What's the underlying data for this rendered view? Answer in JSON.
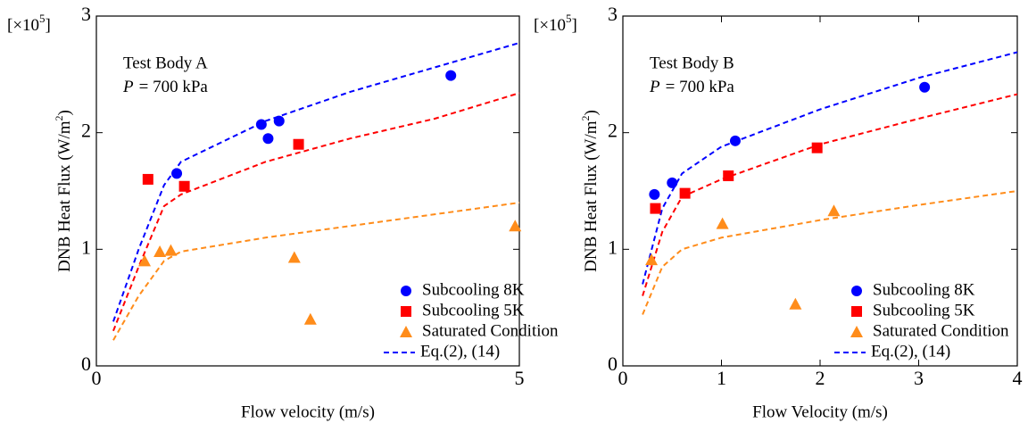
{
  "chart_data": [
    {
      "type": "scatter",
      "annotation": "Test Body A",
      "pressure": {
        "symbol": "P",
        "text": "= 700 kPa"
      },
      "scale_label": [
        "[×10",
        "5",
        "]"
      ],
      "xlabel": "Flow velocity (m/s)",
      "ylabel": [
        "DNB Heat Flux (W/m",
        "2",
        ")"
      ],
      "xlim": [
        0,
        5
      ],
      "ylim": [
        0,
        3
      ],
      "xticks": [
        0,
        5
      ],
      "yticks": [
        0,
        1,
        2,
        3
      ],
      "legend": "lower right",
      "series": [
        {
          "name": "Subcooling 8K",
          "color": "#0000ff",
          "marker": "circle",
          "x": [
            0.95,
            1.95,
            2.03,
            2.16,
            4.19
          ],
          "values": [
            1.65,
            2.07,
            1.95,
            2.1,
            2.49
          ]
        },
        {
          "name": "Subcooling 5K",
          "color": "#ff0000",
          "marker": "square",
          "x": [
            0.61,
            1.04,
            2.39
          ],
          "values": [
            1.6,
            1.54,
            1.9
          ]
        },
        {
          "name": "Saturated Condition",
          "color": "#ff8c1a",
          "marker": "triangle",
          "x": [
            0.57,
            0.75,
            0.88,
            2.34,
            2.53,
            4.95
          ],
          "values": [
            0.9,
            0.98,
            0.99,
            0.93,
            0.4,
            1.2
          ]
        }
      ],
      "fits": [
        {
          "name": "Eq.(2), (14)",
          "color": "#0000ff",
          "x": [
            0.2,
            0.5,
            0.8,
            1.0,
            2,
            3,
            4,
            5
          ],
          "values": [
            0.38,
            1.0,
            1.55,
            1.75,
            2.1,
            2.35,
            2.56,
            2.77
          ]
        },
        {
          "color": "#ff0000",
          "x": [
            0.2,
            0.5,
            0.8,
            1.0,
            2,
            3,
            4,
            5
          ],
          "values": [
            0.3,
            0.85,
            1.37,
            1.47,
            1.75,
            1.95,
            2.12,
            2.34
          ]
        },
        {
          "color": "#ff8c1a",
          "x": [
            0.2,
            0.5,
            0.8,
            1.0,
            2,
            3,
            4,
            5
          ],
          "values": [
            0.22,
            0.6,
            0.9,
            0.98,
            1.1,
            1.2,
            1.3,
            1.4
          ]
        }
      ]
    },
    {
      "type": "scatter",
      "annotation": "Test Body B",
      "pressure": {
        "symbol": "P",
        "text": "= 700 kPa"
      },
      "scale_label": [
        "[×10",
        "5",
        "]"
      ],
      "xlabel": "Flow Velocity (m/s)",
      "ylabel": [
        "DNB Heat Flux (W/m",
        "2",
        ")"
      ],
      "xlim": [
        0,
        4
      ],
      "ylim": [
        0,
        3
      ],
      "xticks": [
        0,
        1,
        2,
        3,
        4
      ],
      "yticks": [
        0,
        1,
        2,
        3
      ],
      "legend": "lower right",
      "series": [
        {
          "name": "Subcooling 8K",
          "color": "#0000ff",
          "marker": "circle",
          "x": [
            0.32,
            0.5,
            1.14,
            3.06
          ],
          "values": [
            1.47,
            1.57,
            1.93,
            2.39
          ]
        },
        {
          "name": "Subcooling 5K",
          "color": "#ff0000",
          "marker": "square",
          "x": [
            0.33,
            0.63,
            1.07,
            1.97
          ],
          "values": [
            1.35,
            1.48,
            1.63,
            1.87
          ]
        },
        {
          "name": "Saturated Condition",
          "color": "#ff8c1a",
          "marker": "triangle",
          "x": [
            0.29,
            1.01,
            1.75,
            2.14
          ],
          "values": [
            0.91,
            1.22,
            0.53,
            1.33
          ]
        }
      ],
      "fits": [
        {
          "name": "Eq.(2), (14)",
          "color": "#0000ff",
          "x": [
            0.2,
            0.4,
            0.6,
            1,
            2,
            3,
            4
          ],
          "values": [
            0.7,
            1.35,
            1.65,
            1.88,
            2.2,
            2.47,
            2.69
          ]
        },
        {
          "color": "#ff0000",
          "x": [
            0.2,
            0.4,
            0.6,
            1,
            2,
            3,
            4
          ],
          "values": [
            0.6,
            1.15,
            1.45,
            1.6,
            1.9,
            2.12,
            2.33
          ]
        },
        {
          "color": "#ff8c1a",
          "x": [
            0.2,
            0.4,
            0.6,
            1,
            2,
            3,
            4
          ],
          "values": [
            0.44,
            0.85,
            1.0,
            1.1,
            1.25,
            1.38,
            1.5
          ]
        }
      ]
    }
  ]
}
